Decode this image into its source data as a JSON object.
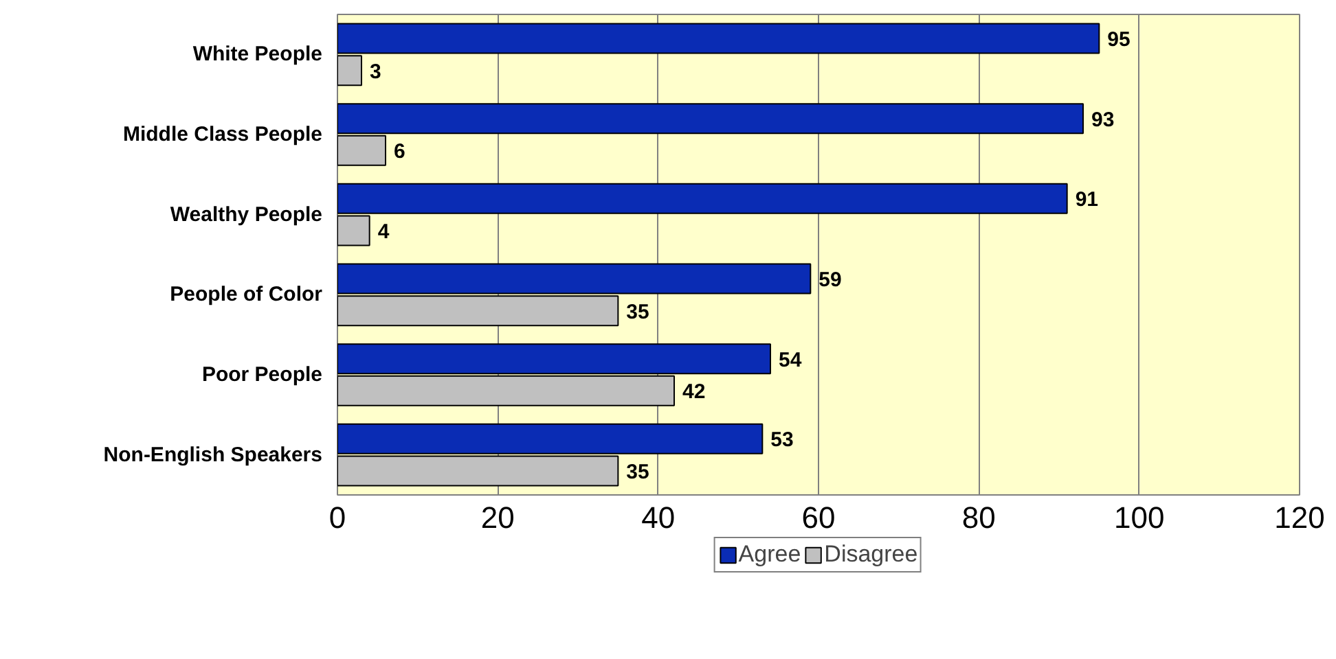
{
  "chart_data": {
    "type": "bar",
    "orientation": "horizontal",
    "categories": [
      "White People",
      "Middle Class People",
      "Wealthy People",
      "People of Color",
      "Poor People",
      "Non-English Speakers"
    ],
    "series": [
      {
        "name": "Agree",
        "color": "#0a2cb4",
        "values": [
          95,
          93,
          91,
          59,
          54,
          53
        ]
      },
      {
        "name": "Disagree",
        "color": "#c0c0c0",
        "values": [
          3,
          6,
          4,
          35,
          42,
          35
        ]
      }
    ],
    "xlim": [
      0,
      120
    ],
    "xticks": [
      0,
      20,
      40,
      60,
      80,
      100,
      120
    ],
    "grid": "x",
    "legend": "bottom",
    "data_labels": true
  }
}
